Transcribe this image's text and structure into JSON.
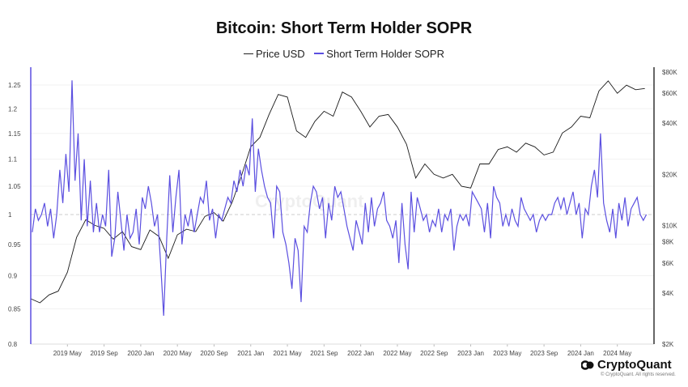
{
  "chart_data": {
    "type": "line",
    "title": "Bitcoin: Short Term Holder SOPR",
    "legend": [
      "Price USD",
      "Short Term Holder SOPR"
    ],
    "legend_placement": "top-center",
    "colors": {
      "price": "#1a1a1a",
      "sopr": "#5b4fe0"
    },
    "xlim": [
      "2019-01",
      "2024-09"
    ],
    "x_ticks": [
      "2019 May",
      "2019 Sep",
      "2020 Jan",
      "2020 May",
      "2020 Sep",
      "2021 Jan",
      "2021 May",
      "2021 Sep",
      "2022 Jan",
      "2022 May",
      "2022 Sep",
      "2023 Jan",
      "2023 May",
      "2023 Sep",
      "2024 Jan",
      "2024 May"
    ],
    "x_tick_months": [
      "2019-05",
      "2019-09",
      "2020-01",
      "2020-05",
      "2020-09",
      "2021-01",
      "2021-05",
      "2021-09",
      "2022-01",
      "2022-05",
      "2022-09",
      "2023-01",
      "2023-05",
      "2023-09",
      "2024-01",
      "2024-05"
    ],
    "y_left": {
      "scale": "log",
      "lim": [
        0.8,
        1.27
      ],
      "ticks": [
        0.8,
        0.85,
        0.9,
        0.95,
        1,
        1.05,
        1.1,
        1.15,
        1.2,
        1.25
      ],
      "tick_labels": [
        "0.8",
        "0.85",
        "0.9",
        "0.95",
        "1",
        "1.05",
        "1.1",
        "1.15",
        "1.2",
        "1.25"
      ]
    },
    "y_right": {
      "scale": "log",
      "lim": [
        2000,
        80000
      ],
      "ticks": [
        2000,
        4000,
        6000,
        8000,
        10000,
        20000,
        40000,
        60000,
        80000
      ],
      "tick_labels": [
        "$2K",
        "$4K",
        "$6K",
        "$8K",
        "$10K",
        "$20K",
        "$40K",
        "$60K",
        "$80K"
      ]
    },
    "reference_line": 1,
    "grid": true,
    "data": [
      {
        "month": "2019-01",
        "price": 3700,
        "sopr": [
          0.97,
          1.01,
          0.99
        ]
      },
      {
        "month": "2019-02",
        "price": 3500,
        "sopr": [
          1.0,
          1.02,
          0.98
        ]
      },
      {
        "month": "2019-03",
        "price": 3900,
        "sopr": [
          1.01,
          0.96,
          1.0
        ]
      },
      {
        "month": "2019-04",
        "price": 4100,
        "sopr": [
          1.08,
          1.02,
          1.11
        ]
      },
      {
        "month": "2019-05",
        "price": 5300,
        "sopr": [
          1.04,
          1.26,
          1.06
        ]
      },
      {
        "month": "2019-06",
        "price": 8500,
        "sopr": [
          1.15,
          0.99,
          1.1
        ]
      },
      {
        "month": "2019-07",
        "price": 10800,
        "sopr": [
          0.98,
          1.06,
          0.97
        ]
      },
      {
        "month": "2019-08",
        "price": 10000,
        "sopr": [
          1.02,
          0.97,
          1.0
        ]
      },
      {
        "month": "2019-09",
        "price": 9600,
        "sopr": [
          0.98,
          1.08,
          0.93
        ]
      },
      {
        "month": "2019-10",
        "price": 8300,
        "sopr": [
          0.96,
          1.04,
          0.99
        ]
      },
      {
        "month": "2019-11",
        "price": 9200,
        "sopr": [
          0.94,
          1.0,
          0.96
        ]
      },
      {
        "month": "2019-12",
        "price": 7500,
        "sopr": [
          0.97,
          1.01,
          0.95
        ]
      },
      {
        "month": "2020-01",
        "price": 7200,
        "sopr": [
          1.03,
          1.01,
          1.05
        ]
      },
      {
        "month": "2020-02",
        "price": 9400,
        "sopr": [
          1.02,
          0.98,
          1.0
        ]
      },
      {
        "month": "2020-03",
        "price": 8600,
        "sopr": [
          0.92,
          0.84,
          0.96
        ]
      },
      {
        "month": "2020-04",
        "price": 6400,
        "sopr": [
          1.07,
          0.97,
          1.03
        ]
      },
      {
        "month": "2020-05",
        "price": 8800,
        "sopr": [
          1.08,
          0.95,
          1.0
        ]
      },
      {
        "month": "2020-06",
        "price": 9500,
        "sopr": [
          0.98,
          1.01,
          0.97
        ]
      },
      {
        "month": "2020-07",
        "price": 9200,
        "sopr": [
          1.0,
          1.03,
          1.02
        ]
      },
      {
        "month": "2020-08",
        "price": 11300,
        "sopr": [
          1.06,
          0.99,
          1.01
        ]
      },
      {
        "month": "2020-09",
        "price": 11900,
        "sopr": [
          0.96,
          1.0,
          0.99
        ]
      },
      {
        "month": "2020-10",
        "price": 10600,
        "sopr": [
          1.01,
          1.03,
          1.02
        ]
      },
      {
        "month": "2020-11",
        "price": 13800,
        "sopr": [
          1.06,
          1.04,
          1.08
        ]
      },
      {
        "month": "2020-12",
        "price": 19700,
        "sopr": [
          1.05,
          1.09,
          1.07
        ]
      },
      {
        "month": "2021-01",
        "price": 29000,
        "sopr": [
          1.18,
          1.04,
          1.12
        ]
      },
      {
        "month": "2021-02",
        "price": 33000,
        "sopr": [
          1.08,
          1.05,
          1.03
        ]
      },
      {
        "month": "2021-03",
        "price": 45000,
        "sopr": [
          1.02,
          0.96,
          1.05
        ]
      },
      {
        "month": "2021-04",
        "price": 59000,
        "sopr": [
          1.04,
          0.97,
          0.95
        ]
      },
      {
        "month": "2021-05",
        "price": 57000,
        "sopr": [
          0.92,
          0.88,
          0.96
        ]
      },
      {
        "month": "2021-06",
        "price": 36000,
        "sopr": [
          0.94,
          0.86,
          0.98
        ]
      },
      {
        "month": "2021-07",
        "price": 33000,
        "sopr": [
          0.97,
          1.02,
          1.05
        ]
      },
      {
        "month": "2021-08",
        "price": 41000,
        "sopr": [
          1.04,
          1.01,
          1.03
        ]
      },
      {
        "month": "2021-09",
        "price": 47000,
        "sopr": [
          0.96,
          1.02,
          0.99
        ]
      },
      {
        "month": "2021-10",
        "price": 44000,
        "sopr": [
          1.05,
          1.03,
          1.04
        ]
      },
      {
        "month": "2021-11",
        "price": 61000,
        "sopr": [
          1.01,
          0.98,
          0.96
        ]
      },
      {
        "month": "2021-12",
        "price": 57000,
        "sopr": [
          0.94,
          0.99,
          0.97
        ]
      },
      {
        "month": "2022-01",
        "price": 47000,
        "sopr": [
          0.95,
          1.02,
          0.97
        ]
      },
      {
        "month": "2022-02",
        "price": 38000,
        "sopr": [
          1.03,
          0.98,
          1.01
        ]
      },
      {
        "month": "2022-03",
        "price": 44000,
        "sopr": [
          1.02,
          1.04,
          0.99
        ]
      },
      {
        "month": "2022-04",
        "price": 45000,
        "sopr": [
          0.98,
          0.96,
          0.99
        ]
      },
      {
        "month": "2022-05",
        "price": 38000,
        "sopr": [
          0.92,
          1.02,
          0.95
        ]
      },
      {
        "month": "2022-06",
        "price": 30000,
        "sopr": [
          0.91,
          1.04,
          0.97
        ]
      },
      {
        "month": "2022-07",
        "price": 19000,
        "sopr": [
          1.03,
          1.01,
          0.99
        ]
      },
      {
        "month": "2022-08",
        "price": 23000,
        "sopr": [
          1.0,
          0.97,
          0.99
        ]
      },
      {
        "month": "2022-09",
        "price": 20000,
        "sopr": [
          0.98,
          1.01,
          0.97
        ]
      },
      {
        "month": "2022-10",
        "price": 19000,
        "sopr": [
          1.0,
          0.99,
          1.01
        ]
      },
      {
        "month": "2022-11",
        "price": 20000,
        "sopr": [
          0.94,
          0.98,
          1.0
        ]
      },
      {
        "month": "2022-12",
        "price": 17000,
        "sopr": [
          0.99,
          1.0,
          0.98
        ]
      },
      {
        "month": "2023-01",
        "price": 16600,
        "sopr": [
          1.04,
          1.03,
          1.02
        ]
      },
      {
        "month": "2023-02",
        "price": 23000,
        "sopr": [
          1.01,
          0.97,
          1.02
        ]
      },
      {
        "month": "2023-03",
        "price": 23000,
        "sopr": [
          0.96,
          1.05,
          1.03
        ]
      },
      {
        "month": "2023-04",
        "price": 28000,
        "sopr": [
          1.02,
          0.98,
          1.0
        ]
      },
      {
        "month": "2023-05",
        "price": 29000,
        "sopr": [
          0.98,
          1.01,
          0.99
        ]
      },
      {
        "month": "2023-06",
        "price": 27000,
        "sopr": [
          0.98,
          1.03,
          1.01
        ]
      },
      {
        "month": "2023-07",
        "price": 30500,
        "sopr": [
          1.0,
          0.99,
          1.0
        ]
      },
      {
        "month": "2023-08",
        "price": 29000,
        "sopr": [
          0.97,
          0.99,
          1.0
        ]
      },
      {
        "month": "2023-09",
        "price": 26000,
        "sopr": [
          0.99,
          1.0,
          1.0
        ]
      },
      {
        "month": "2023-10",
        "price": 27000,
        "sopr": [
          1.02,
          1.03,
          1.01
        ]
      },
      {
        "month": "2023-11",
        "price": 35000,
        "sopr": [
          1.03,
          1.0,
          1.02
        ]
      },
      {
        "month": "2023-12",
        "price": 38000,
        "sopr": [
          1.04,
          1.0,
          1.02
        ]
      },
      {
        "month": "2024-01",
        "price": 44000,
        "sopr": [
          0.96,
          1.01,
          1.0
        ]
      },
      {
        "month": "2024-02",
        "price": 43000,
        "sopr": [
          1.05,
          1.08,
          1.03
        ]
      },
      {
        "month": "2024-03",
        "price": 62000,
        "sopr": [
          1.15,
          1.02,
          0.99
        ]
      },
      {
        "month": "2024-04",
        "price": 71000,
        "sopr": [
          0.97,
          1.01,
          0.96
        ]
      },
      {
        "month": "2024-05",
        "price": 60000,
        "sopr": [
          1.02,
          0.99,
          1.03
        ]
      },
      {
        "month": "2024-06",
        "price": 67000,
        "sopr": [
          0.98,
          1.01,
          1.02
        ]
      },
      {
        "month": "2024-07",
        "price": 63000,
        "sopr": [
          1.03,
          1.0,
          0.99
        ]
      },
      {
        "month": "2024-08",
        "price": 64000,
        "sopr": [
          1.0
        ]
      }
    ]
  },
  "branding": {
    "watermark": "CryptoQuant",
    "logo": "CryptoQuant",
    "copyright": "© CryptoQuant. All rights reserved."
  }
}
